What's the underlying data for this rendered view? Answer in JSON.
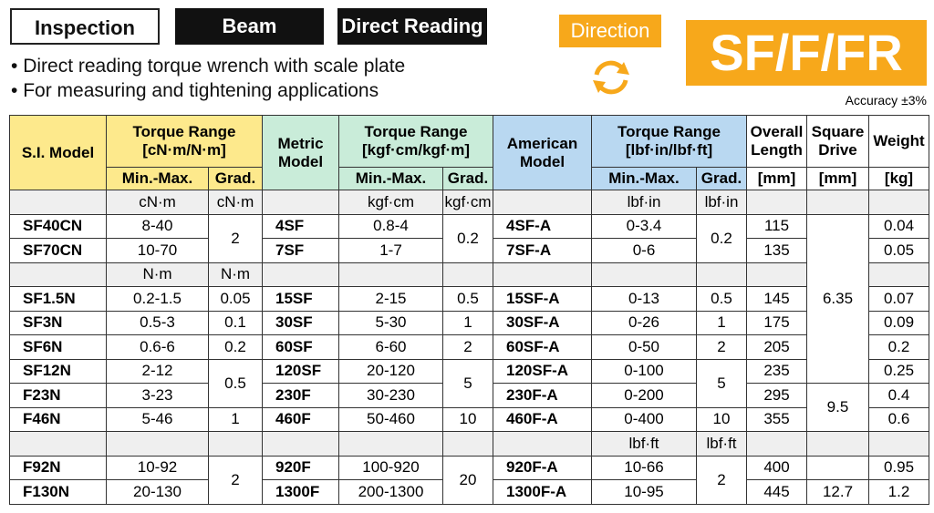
{
  "header": {
    "tags": [
      "Inspection",
      "Beam",
      "Direct Reading"
    ],
    "direction": "Direction",
    "series": "SF/F/FR",
    "bullets": [
      "Direct reading torque wrench with scale plate",
      "For measuring and tightening applications"
    ],
    "accuracy": "Accuracy ±3%"
  },
  "table": {
    "head1": [
      "S.I. Model",
      "Torque Range\n[cN·m/N·m]",
      "Metric\nModel",
      "Torque Range\n[kgf·cm/kgf·m]",
      "American\nModel",
      "Torque Range\n[lbf·in/lbf·ft]",
      "Overall\nLength",
      "Square\nDrive",
      "Weight"
    ],
    "head2": [
      "Min.-Max.",
      "Grad.",
      "Min.-Max.",
      "Grad.",
      "Min.-Max.",
      "Grad.",
      "[mm]",
      "[mm]",
      "[kg]"
    ],
    "rows": [
      [
        null,
        "cN·m",
        "cN·m",
        null,
        "kgf·cm",
        "kgf·cm",
        null,
        "lbf·in",
        "lbf·in",
        null,
        null,
        null
      ],
      [
        "SF40CN",
        "8-40",
        "2",
        "4SF",
        "0.8-4",
        "0.2",
        "4SF-A",
        "0-3.4",
        "0.2",
        "115",
        "6.35",
        "0.04"
      ],
      [
        "SF70CN",
        "10-70",
        null,
        "7SF",
        "1-7",
        null,
        "7SF-A",
        "0-6",
        null,
        "135",
        null,
        "0.05"
      ],
      [
        null,
        "N·m",
        "N·m",
        null,
        null,
        null,
        null,
        null,
        null,
        null,
        null,
        null
      ],
      [
        "SF1.5N",
        "0.2-1.5",
        "0.05",
        "15SF",
        "2-15",
        "0.5",
        "15SF-A",
        "0-13",
        "0.5",
        "145",
        null,
        "0.07"
      ],
      [
        "SF3N",
        "0.5-3",
        "0.1",
        "30SF",
        "5-30",
        "1",
        "30SF-A",
        "0-26",
        "1",
        "175",
        null,
        "0.09"
      ],
      [
        "SF6N",
        "0.6-6",
        "0.2",
        "60SF",
        "6-60",
        "2",
        "60SF-A",
        "0-50",
        "2",
        "205",
        null,
        "0.2"
      ],
      [
        "SF12N",
        "2-12",
        "0.5",
        "120SF",
        "20-120",
        "5",
        "120SF-A",
        "0-100",
        "5",
        "235",
        null,
        "0.25"
      ],
      [
        "F23N",
        "3-23",
        null,
        "230F",
        "30-230",
        null,
        "230F-A",
        "0-200",
        null,
        "295",
        "9.5",
        "0.4"
      ],
      [
        "F46N",
        "5-46",
        "1",
        "460F",
        "50-460",
        "10",
        "460F-A",
        "0-400",
        "10",
        "355",
        null,
        "0.6"
      ],
      [
        null,
        null,
        null,
        null,
        null,
        null,
        null,
        "lbf·ft",
        "lbf·ft",
        null,
        null,
        null
      ],
      [
        "F92N",
        "10-92",
        "2",
        "920F",
        "100-920",
        "20",
        "920F-A",
        "10-66",
        "2",
        "400",
        null,
        "0.95"
      ],
      [
        "F130N",
        "20-130",
        null,
        "1300F",
        "200-1300",
        null,
        "1300F-A",
        "10-95",
        null,
        "445",
        "12.7",
        "1.2"
      ]
    ]
  }
}
